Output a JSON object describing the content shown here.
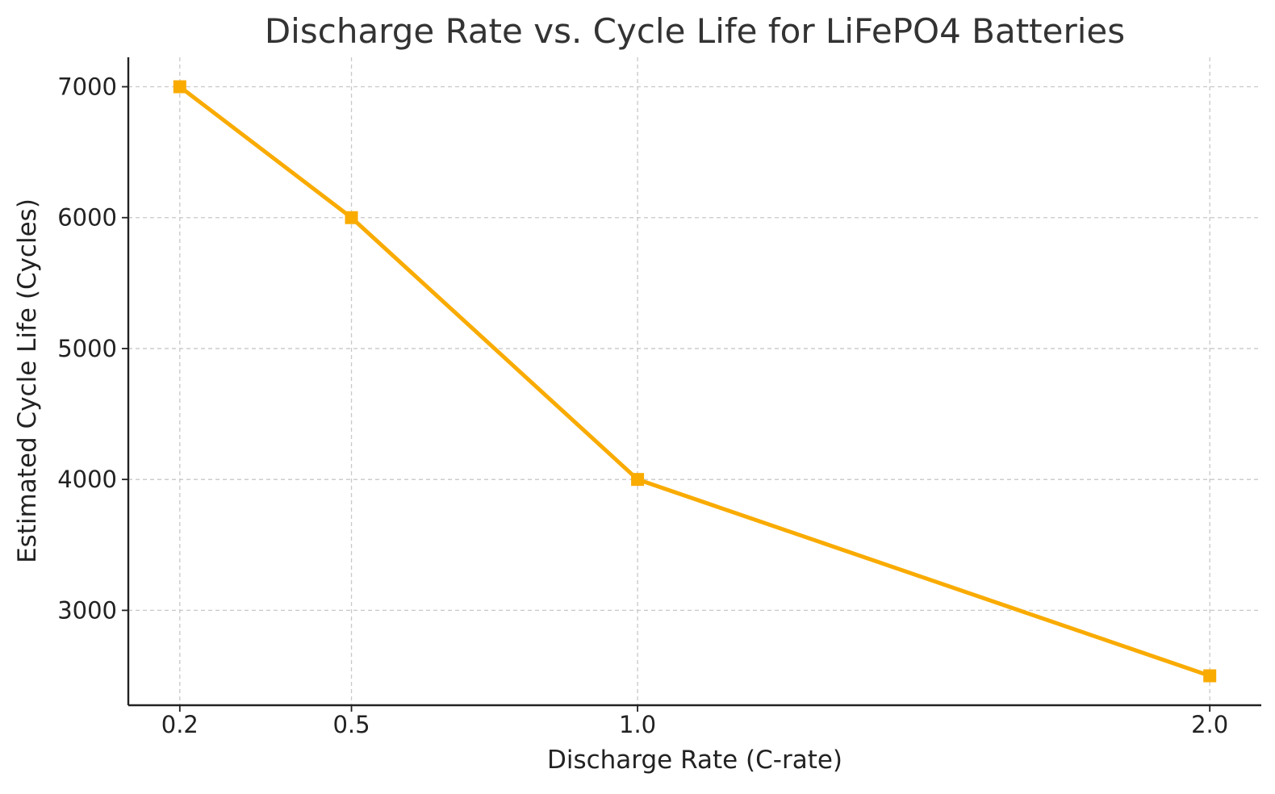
{
  "chart_data": {
    "type": "line",
    "title": "Discharge Rate vs. Cycle Life for LiFePO4 Batteries",
    "xlabel": "Discharge Rate (C-rate)",
    "ylabel": "Estimated Cycle Life (Cycles)",
    "x": [
      0.2,
      0.5,
      1.0,
      2.0
    ],
    "x_tick_labels": [
      "0.2",
      "0.5",
      "1.0",
      "2.0"
    ],
    "y_ticks": [
      3000,
      4000,
      5000,
      6000,
      7000
    ],
    "y_tick_labels": [
      "3000",
      "4000",
      "5000",
      "6000",
      "7000"
    ],
    "xlim": [
      0.11,
      2.09
    ],
    "ylim": [
      2275,
      7225
    ],
    "grid": true,
    "series": [
      {
        "values": [
          7000,
          6000,
          4000,
          2500
        ],
        "color": "#F9AB00",
        "marker": "square"
      }
    ]
  }
}
